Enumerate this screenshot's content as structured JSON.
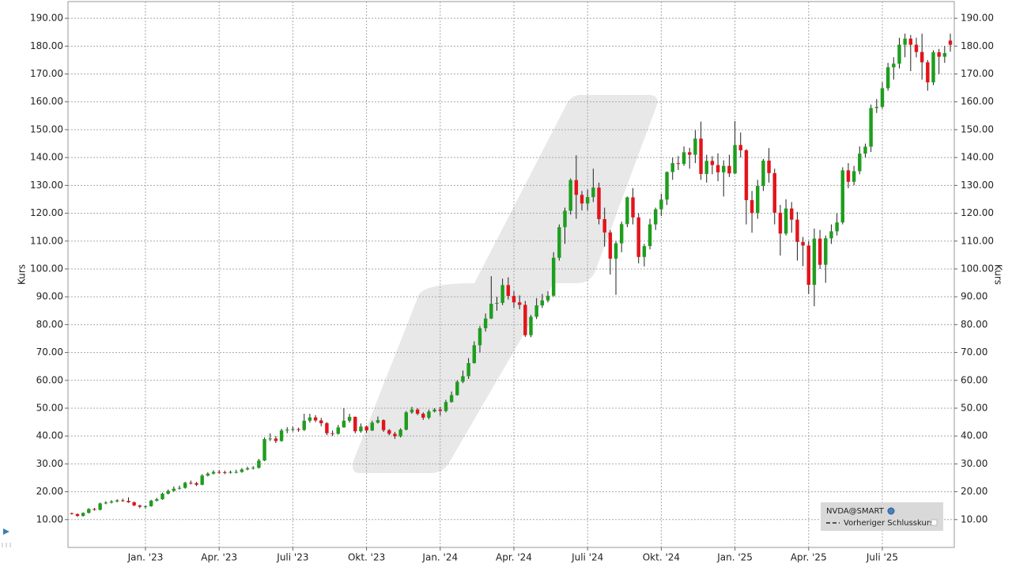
{
  "chart_data": {
    "type": "candlestick",
    "y_label": "Kurs",
    "legend": [
      "NVDA@SMART",
      "Vorheriger Schlusskurs"
    ],
    "legend_position": "lower right",
    "grid": true,
    "up_color": "#1e9e1e",
    "down_color": "#e3141c",
    "ylim": [
      0,
      196
    ],
    "yticks": [
      {
        "value": 10,
        "label": "10.00"
      },
      {
        "value": 20,
        "label": "20.00"
      },
      {
        "value": 30,
        "label": "30.00"
      },
      {
        "value": 40,
        "label": "40.00"
      },
      {
        "value": 50,
        "label": "50.00"
      },
      {
        "value": 60,
        "label": "60.00"
      },
      {
        "value": 70,
        "label": "70.00"
      },
      {
        "value": 80,
        "label": "80.00"
      },
      {
        "value": 90,
        "label": "90.00"
      },
      {
        "value": 100,
        "label": "100.00"
      },
      {
        "value": 110,
        "label": "110.00"
      },
      {
        "value": 120,
        "label": "120.00"
      },
      {
        "value": 130,
        "label": "130.00"
      },
      {
        "value": 140,
        "label": "140.00"
      },
      {
        "value": 150,
        "label": "150.00"
      },
      {
        "value": 160,
        "label": "160.00"
      },
      {
        "value": 170,
        "label": "170.00"
      },
      {
        "value": 180,
        "label": "180.00"
      },
      {
        "value": 190,
        "label": "190.00"
      }
    ],
    "categories": [
      null,
      null,
      null,
      null,
      null,
      null,
      null,
      null,
      null,
      null,
      null,
      null,
      null,
      "Jan. '23",
      null,
      null,
      null,
      null,
      null,
      null,
      null,
      null,
      null,
      null,
      null,
      null,
      "Apr. '23",
      null,
      null,
      null,
      null,
      null,
      null,
      null,
      null,
      null,
      null,
      null,
      null,
      "Juli '23",
      null,
      null,
      null,
      null,
      null,
      null,
      null,
      null,
      null,
      null,
      null,
      null,
      "Okt. '23",
      null,
      null,
      null,
      null,
      null,
      null,
      null,
      null,
      null,
      null,
      null,
      null,
      "Jan. '24",
      null,
      null,
      null,
      null,
      null,
      null,
      null,
      null,
      null,
      null,
      null,
      null,
      "Apr. '24",
      null,
      null,
      null,
      null,
      null,
      null,
      null,
      null,
      null,
      null,
      null,
      null,
      "Juli '24",
      null,
      null,
      null,
      null,
      null,
      null,
      null,
      null,
      null,
      null,
      null,
      null,
      "Okt. '24",
      null,
      null,
      null,
      null,
      null,
      null,
      null,
      null,
      null,
      null,
      null,
      null,
      "Jan. '25",
      null,
      null,
      null,
      null,
      null,
      null,
      null,
      null,
      null,
      null,
      null,
      null,
      "Apr. '25",
      null,
      null,
      null,
      null,
      null,
      null,
      null,
      null,
      null,
      null,
      null,
      null,
      "Juli '25",
      null,
      null,
      null,
      null,
      null,
      null,
      null,
      null,
      null,
      null,
      null,
      null
    ],
    "open": [
      12.3,
      12.0,
      11.3,
      12.4,
      13.8,
      13.5,
      15.8,
      16.1,
      16.5,
      16.9,
      16.7,
      16.2,
      15.1,
      14.6,
      14.8,
      16.8,
      17.3,
      19.3,
      20.3,
      21.1,
      21.4,
      23.2,
      23.1,
      22.5,
      25.8,
      26.5,
      27.1,
      27.0,
      26.8,
      27.1,
      27.1,
      28.0,
      28.4,
      28.6,
      31.2,
      38.9,
      39.1,
      38.2,
      42.0,
      42.3,
      42.5,
      42.2,
      45.5,
      46.7,
      45.6,
      44.6,
      41.0,
      40.8,
      43.1,
      45.5,
      46.9,
      41.7,
      43.4,
      42.0,
      44.8,
      45.7,
      42.1,
      40.8,
      39.9,
      42.3,
      48.5,
      49.5,
      48.0,
      46.6,
      48.8,
      49.5,
      49.0,
      52.2,
      54.7,
      59.5,
      61.5,
      66.2,
      72.6,
      78.7,
      82.2,
      87.5,
      87.8,
      94.2,
      90.3,
      88.0,
      87.1,
      76.2,
      82.8,
      86.9,
      88.7,
      90.4,
      104.0,
      115.0,
      120.9,
      131.9,
      126.6,
      123.5,
      125.8,
      129.2,
      117.9,
      113.1,
      103.7,
      109.2,
      116.1,
      125.7,
      118.5,
      104.3,
      108.2,
      116.0,
      121.4,
      124.9,
      134.8,
      138.0,
      137.7,
      141.9,
      141.0,
      146.8,
      134.1,
      138.8,
      137.3,
      134.7,
      137.0,
      134.3,
      144.5,
      142.6,
      124.7,
      120.1,
      129.8,
      138.9,
      134.4,
      120.2,
      112.7,
      121.7,
      117.7,
      109.7,
      108.4,
      94.3,
      110.9,
      101.5,
      111.0,
      113.5,
      116.7,
      135.4,
      131.3,
      135.1,
      141.4,
      143.9,
      157.8,
      158.2,
      164.9,
      172.4,
      173.7,
      180.5,
      182.7,
      180.5,
      177.9,
      174.2,
      167.0,
      177.8,
      176.2,
      182.0
    ],
    "high": [
      12.5,
      12.2,
      12.6,
      14.1,
      14.2,
      16.1,
      16.6,
      17.0,
      17.3,
      17.5,
      18.0,
      16.5,
      15.3,
      15.1,
      17.1,
      17.8,
      19.7,
      20.8,
      21.9,
      22.2,
      23.6,
      24.0,
      23.5,
      26.3,
      27.0,
      27.7,
      27.8,
      27.6,
      27.6,
      27.9,
      28.5,
      29.0,
      29.2,
      31.8,
      39.5,
      41.0,
      40.0,
      42.6,
      43.2,
      43.4,
      43.0,
      48.0,
      48.0,
      47.5,
      46.5,
      45.0,
      42.0,
      44.0,
      50.0,
      48.0,
      47.0,
      44.5,
      43.8,
      45.5,
      47.0,
      46.0,
      42.5,
      41.5,
      42.8,
      49.0,
      50.5,
      50.0,
      48.5,
      49.5,
      50.0,
      50.5,
      53.0,
      56.0,
      60.0,
      63.5,
      68.0,
      74.0,
      79.5,
      84.0,
      97.4,
      90.0,
      96.5,
      97.0,
      92.0,
      90.5,
      88.5,
      83.5,
      89.5,
      91.0,
      92.0,
      106.0,
      116.0,
      122.0,
      132.5,
      140.8,
      128.0,
      128.5,
      136.0,
      131.0,
      122.0,
      114.0,
      110.0,
      117.0,
      126.0,
      129.0,
      120.0,
      109.0,
      118.0,
      122.0,
      127.0,
      135.0,
      140.0,
      140.5,
      144.0,
      143.5,
      149.8,
      152.9,
      141.0,
      140.5,
      141.5,
      139.0,
      141.0,
      153.1,
      149.0,
      143.0,
      128.0,
      132.0,
      139.5,
      143.4,
      136.0,
      123.0,
      125.0,
      124.0,
      120.5,
      111.5,
      110.0,
      114.5,
      114.0,
      112.0,
      116.0,
      120.0,
      136.5,
      138.0,
      137.0,
      144.0,
      145.0,
      159.0,
      161.0,
      167.0,
      174.0,
      176.0,
      183.0,
      184.5,
      184.0,
      183.0,
      184.5,
      175.0,
      178.5,
      179.0,
      180.0,
      184.5
    ],
    "low": [
      11.8,
      11.0,
      11.1,
      12.2,
      13.2,
      13.3,
      15.5,
      15.8,
      16.2,
      16.4,
      16.0,
      14.8,
      14.1,
      14.0,
      14.6,
      16.5,
      17.1,
      19.0,
      20.0,
      20.8,
      21.1,
      22.6,
      22.0,
      22.3,
      25.5,
      26.2,
      26.5,
      26.3,
      26.5,
      26.6,
      26.8,
      27.7,
      28.0,
      28.3,
      31.0,
      38.2,
      37.5,
      38.0,
      41.0,
      41.6,
      41.5,
      41.8,
      44.8,
      45.0,
      43.5,
      40.3,
      40.0,
      40.5,
      43.0,
      44.8,
      41.0,
      41.2,
      41.2,
      41.8,
      44.5,
      41.5,
      40.3,
      39.0,
      39.5,
      42.0,
      48.0,
      47.5,
      45.8,
      46.0,
      48.5,
      47.3,
      48.5,
      52.0,
      54.5,
      59.0,
      60.5,
      66.0,
      70.0,
      77.5,
      82.0,
      85.0,
      87.0,
      89.0,
      86.0,
      85.5,
      75.6,
      75.5,
      82.0,
      86.0,
      88.0,
      90.0,
      103.0,
      109.0,
      119.5,
      118.0,
      121.0,
      121.0,
      124.0,
      116.0,
      108.0,
      98.0,
      90.7,
      106.0,
      115.0,
      116.0,
      102.0,
      100.9,
      107.0,
      114.0,
      119.0,
      123.0,
      132.0,
      135.5,
      137.0,
      136.0,
      138.0,
      132.0,
      131.0,
      134.0,
      131.5,
      126.0,
      133.0,
      134.0,
      140.0,
      116.0,
      113.0,
      118.0,
      128.0,
      131.0,
      116.0,
      104.8,
      112.0,
      113.0,
      103.0,
      101.0,
      91.0,
      86.6,
      100.0,
      95.0,
      109.0,
      112.0,
      116.0,
      129.0,
      130.0,
      134.0,
      140.0,
      142.0,
      156.0,
      157.5,
      164.0,
      168.0,
      172.0,
      176.0,
      171.0,
      176.0,
      168.0,
      164.0,
      166.0,
      170.0,
      174.0,
      178.0
    ],
    "close": [
      12.0,
      11.3,
      12.4,
      13.8,
      13.5,
      15.8,
      16.1,
      16.5,
      16.9,
      16.7,
      16.2,
      15.1,
      14.6,
      14.8,
      16.8,
      17.3,
      19.3,
      20.3,
      21.1,
      21.4,
      23.2,
      23.1,
      22.5,
      25.8,
      26.5,
      27.1,
      27.0,
      26.8,
      27.1,
      27.1,
      28.0,
      28.4,
      28.6,
      31.2,
      38.9,
      39.1,
      38.2,
      42.0,
      42.3,
      42.5,
      42.2,
      45.5,
      46.7,
      45.6,
      44.6,
      41.0,
      40.8,
      43.1,
      45.5,
      46.9,
      41.7,
      43.4,
      42.0,
      44.8,
      45.7,
      42.1,
      40.8,
      39.9,
      42.3,
      48.5,
      49.5,
      48.0,
      46.6,
      48.8,
      49.5,
      49.0,
      52.2,
      54.7,
      59.5,
      61.5,
      66.2,
      72.6,
      78.7,
      82.2,
      87.5,
      87.8,
      94.2,
      90.3,
      88.0,
      87.1,
      76.2,
      82.8,
      86.9,
      88.7,
      90.4,
      104.0,
      115.0,
      120.9,
      131.9,
      126.6,
      123.5,
      125.8,
      129.2,
      117.9,
      113.1,
      103.7,
      109.2,
      116.1,
      125.7,
      118.5,
      104.3,
      108.2,
      116.0,
      121.4,
      124.9,
      134.8,
      138.0,
      137.7,
      141.9,
      141.0,
      146.8,
      134.1,
      138.8,
      137.3,
      134.7,
      137.0,
      134.3,
      144.5,
      142.6,
      124.7,
      120.1,
      129.8,
      138.9,
      134.4,
      120.2,
      112.7,
      121.7,
      117.7,
      109.7,
      108.4,
      94.3,
      110.9,
      101.5,
      111.0,
      113.5,
      116.7,
      135.4,
      131.3,
      135.1,
      141.4,
      143.9,
      157.8,
      158.2,
      164.9,
      172.4,
      173.7,
      180.5,
      182.7,
      180.5,
      177.9,
      174.2,
      167.0,
      177.8,
      176.2,
      177.5,
      180.5
    ]
  }
}
